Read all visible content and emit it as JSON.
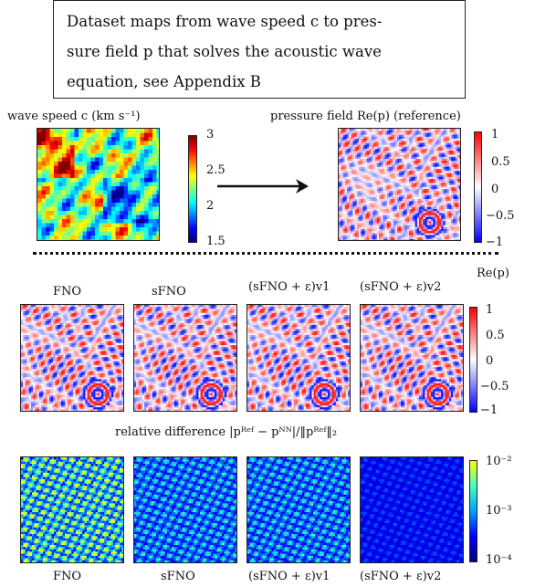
{
  "description": {
    "lines": [
      "Dataset maps from wave speed c to pres-",
      "sure field p that solves the acoustic wave",
      "equation, see Appendix B"
    ]
  },
  "top": {
    "input_label": "wave speed c (km s⁻¹)",
    "input_ticks": [
      "3",
      "2.5",
      "2",
      "1.5"
    ],
    "output_label": "pressure field Re(p) (reference)",
    "output_ticks": [
      "1",
      "0.5",
      "0",
      "−0.5",
      "−1"
    ]
  },
  "predictions": {
    "colorbar_title": "Re(p)",
    "models": [
      "FNO",
      "sFNO",
      "(sFNO + ε)v1",
      "(sFNO + ε)v2"
    ],
    "ticks": [
      "1",
      "0.5",
      "0",
      "−0.5",
      "−1"
    ]
  },
  "errors": {
    "title": "relative difference |pᴿᵉᶠ − pᴺᴺ|/‖pᴿᵉᶠ‖₂",
    "models": [
      "FNO",
      "sFNO",
      "(sFNO + ε)v1",
      "(sFNO + ε)v2"
    ],
    "ticks": [
      "10⁻²",
      "10⁻³",
      "10⁻⁴"
    ],
    "colormap": [
      "#00007f",
      "#0000ff",
      "#00a0ff",
      "#40ffc0",
      "#ffff00"
    ]
  },
  "colors": {
    "jet": [
      "#00007f",
      "#0000ff",
      "#007fff",
      "#00ffff",
      "#7fff7f",
      "#ffff00",
      "#ff7f00",
      "#ff0000",
      "#7f0000"
    ],
    "bwr": [
      "#0000ff",
      "#ffffff",
      "#ff0000"
    ]
  }
}
